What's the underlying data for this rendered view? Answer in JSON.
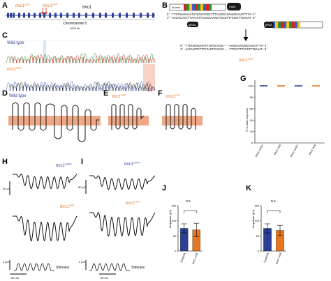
{
  "colors": {
    "orange": "#e8761e",
    "blue": "#2c3e96",
    "membrane": "#efa885",
    "red_arrow": "#d8231c"
  },
  "panels": {
    "A": {
      "letter": "A",
      "gene": "tmc1",
      "allele_a": "tmc1",
      "allele_a_sup": "cw5",
      "allele_b": "tmc1",
      "allele_b_sup": "cw4",
      "chromosome": "Chromosome 5",
      "length": "1670 kb"
    },
    "B": {
      "letter": "B",
      "nterm": "N-term",
      "cas": "Cas9",
      "g1": "gRNA",
      "g2": "gRNA",
      "seq_top_1": "5'-TTGTGGAGAAATATGAAGTGGCTTTCAAGGCAAAGGCAAACTTTA-3'",
      "seq_bot_1": "3'-AACACCTCTTTATACTTCACCGAAAGTTCCGTTTCCGTTTGAAAT-5'",
      "seq_top_2": "5'-TTGTGGAGAAATATGAAGTGGC---AAGGCAAAGGCAAACTTTA-3'",
      "seq_bot_2": "3'-AACACCTCTTTATACTTCACCG---TTCCGTTTCCGTTTGAAAT-5'",
      "result_gene": "tmc1",
      "result_sup": "cw5"
    },
    "C": {
      "letter": "C",
      "wt_label": "Wild type",
      "mut_label": "tmc1",
      "mut_sup": "cw5",
      "stop_label": "Opal"
    },
    "D": {
      "letter": "D",
      "label": "Wild type"
    },
    "E": {
      "letter": "E",
      "label": "tmc1",
      "sup": "cw5"
    },
    "F": {
      "letter": "F",
      "label": "tmc1",
      "sup": "cw4"
    },
    "G": {
      "letter": "G",
      "ylabel": "% C-start response"
    },
    "H": {
      "letter": "H",
      "label_top": "tmc1",
      "label_top_sup": "cw5/+",
      "label_bot": "tmc1",
      "label_bot_sup": "cw5",
      "scale_v": "50 µV",
      "scale_disp": "2 µm",
      "scale_t": "50 ms",
      "stimulus": "Stimulus"
    },
    "I": {
      "letter": "I",
      "label_top": "tmc1",
      "label_top_sup": "cw4/+",
      "label_bot": "tmc1",
      "label_bot_sup": "cw4",
      "scale_v": "50 µV",
      "scale_disp": "2 µm",
      "scale_t": "50 ms",
      "stimulus": "Stimulus"
    },
    "J": {
      "letter": "J",
      "sig": "n.s.",
      "ylabel": "Amplitude (µV)"
    },
    "K": {
      "letter": "K",
      "sig": "n.s.",
      "ylabel": "Amplitude (µV)"
    }
  },
  "chart_data": [
    {
      "type": "scatter",
      "panel": "G",
      "categories": [
        "tmc1 cw5/+",
        "tmc1 cw5",
        "tmc1 cw4/+",
        "tmc1 cw4"
      ],
      "values": [
        100,
        100,
        100,
        100
      ],
      "ylabel": "% C-start response",
      "ylim": [
        0,
        110
      ],
      "yticks": [
        0,
        20,
        40,
        60,
        80,
        100
      ]
    },
    {
      "type": "bar",
      "panel": "J",
      "categories": [
        "Controls",
        "tmc1 cw5"
      ],
      "values": [
        75,
        70
      ],
      "errors": [
        15,
        22
      ],
      "ylabel": "Amplitude (µV)",
      "ylim": [
        0,
        150
      ],
      "yticks": [
        0,
        50,
        100,
        150
      ],
      "annotation": "n.s."
    },
    {
      "type": "bar",
      "panel": "K",
      "categories": [
        "Controls",
        "tmc1 cw4"
      ],
      "values": [
        75,
        68
      ],
      "errors": [
        15,
        17
      ],
      "ylabel": "Amplitude (µV)",
      "ylim": [
        0,
        150
      ],
      "yticks": [
        0,
        50,
        100,
        150
      ],
      "annotation": "n.s."
    }
  ]
}
